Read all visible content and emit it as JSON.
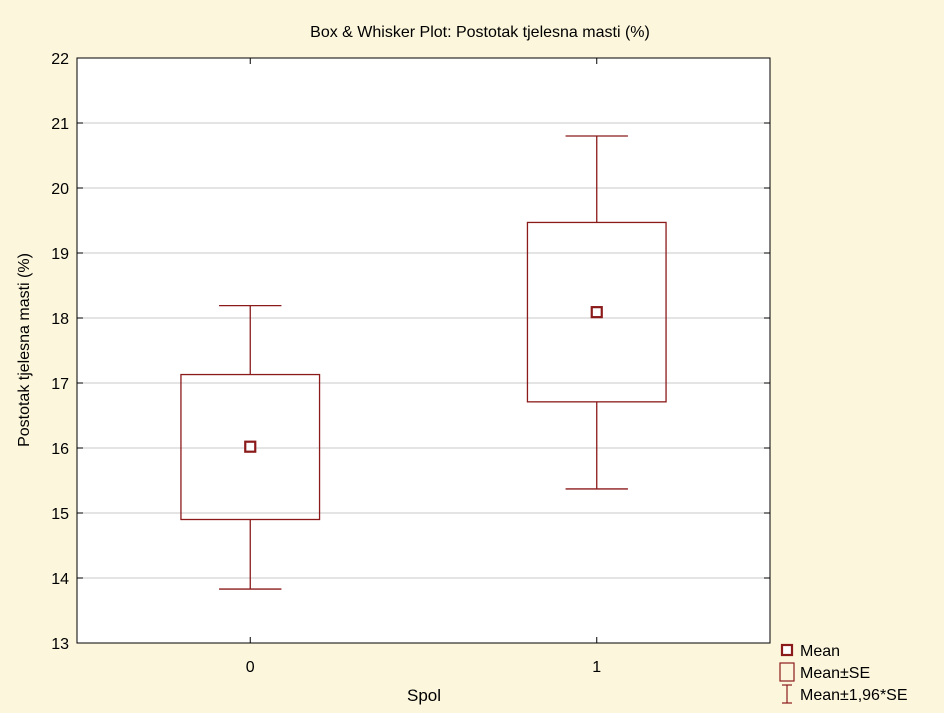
{
  "chart_data": {
    "type": "box",
    "title": "Box & Whisker Plot: Postotak tjelesna masti (%)",
    "xlabel": "Spol",
    "ylabel": "Postotak tjelesna masti (%)",
    "ylim": [
      13,
      22
    ],
    "yticks": [
      "13",
      "14",
      "15",
      "16",
      "17",
      "18",
      "19",
      "20",
      "21",
      "22"
    ],
    "categories": [
      "0",
      "1"
    ],
    "grid": true,
    "legend_position": "bottom-right",
    "boxes": [
      {
        "category": "0",
        "mean": 16.02,
        "se_low": 14.9,
        "se_high": 17.13,
        "ci_low": 13.83,
        "ci_high": 18.19
      },
      {
        "category": "1",
        "mean": 18.09,
        "se_low": 16.71,
        "se_high": 19.47,
        "ci_low": 15.37,
        "ci_high": 20.8
      }
    ],
    "legend": [
      {
        "key": "mean",
        "label": "Mean"
      },
      {
        "key": "se",
        "label": "Mean±SE"
      },
      {
        "key": "ci",
        "label": "Mean±1,96*SE"
      }
    ],
    "colors": {
      "background": "#fbf6dc",
      "plot_background": "#ffffff",
      "series": "#8b1a1a",
      "grid": "#c8c8c8"
    }
  }
}
